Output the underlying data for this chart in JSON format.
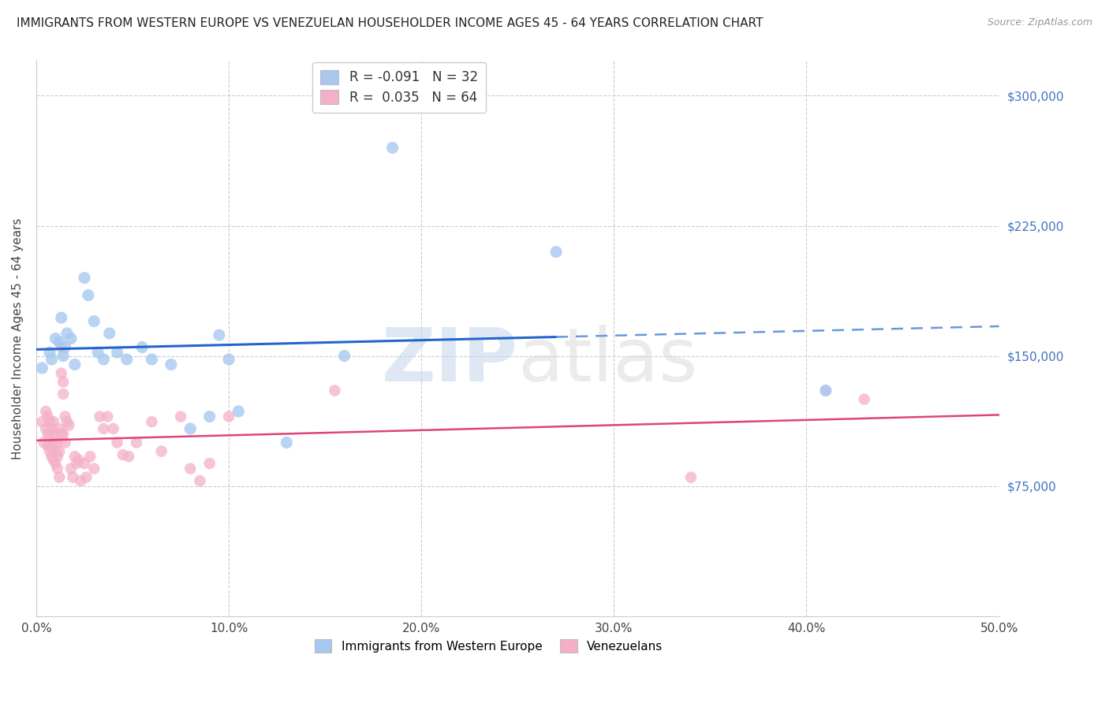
{
  "title": "IMMIGRANTS FROM WESTERN EUROPE VS VENEZUELAN HOUSEHOLDER INCOME AGES 45 - 64 YEARS CORRELATION CHART",
  "source": "Source: ZipAtlas.com",
  "ylabel_label": "Householder Income Ages 45 - 64 years",
  "ylabel_values": [
    75000,
    150000,
    225000,
    300000
  ],
  "xlim": [
    0.0,
    0.5
  ],
  "ylim": [
    0,
    320000
  ],
  "x_tick_vals": [
    0.0,
    0.1,
    0.2,
    0.3,
    0.4,
    0.5
  ],
  "xlabel_ticks": [
    "0.0%",
    "10.0%",
    "20.0%",
    "30.0%",
    "40.0%",
    "50.0%"
  ],
  "blue_color": "#a8c8f0",
  "pink_color": "#f4b0c8",
  "trend_blue_solid_color": "#2266cc",
  "trend_blue_dash_color": "#6699dd",
  "trend_pink_color": "#dd4477",
  "watermark_zip": "ZIP",
  "watermark_atlas": "atlas",
  "legend1_label_r": "-0.091",
  "legend1_label_n": "32",
  "legend2_label_r": "0.035",
  "legend2_label_n": "64",
  "blue_scatter": [
    [
      0.003,
      143000
    ],
    [
      0.007,
      152000
    ],
    [
      0.008,
      148000
    ],
    [
      0.01,
      160000
    ],
    [
      0.012,
      158000
    ],
    [
      0.013,
      172000
    ],
    [
      0.014,
      150000
    ],
    [
      0.015,
      155000
    ],
    [
      0.016,
      163000
    ],
    [
      0.018,
      160000
    ],
    [
      0.02,
      145000
    ],
    [
      0.025,
      195000
    ],
    [
      0.027,
      185000
    ],
    [
      0.03,
      170000
    ],
    [
      0.032,
      152000
    ],
    [
      0.035,
      148000
    ],
    [
      0.038,
      163000
    ],
    [
      0.042,
      152000
    ],
    [
      0.047,
      148000
    ],
    [
      0.055,
      155000
    ],
    [
      0.06,
      148000
    ],
    [
      0.07,
      145000
    ],
    [
      0.08,
      108000
    ],
    [
      0.09,
      115000
    ],
    [
      0.095,
      162000
    ],
    [
      0.1,
      148000
    ],
    [
      0.105,
      118000
    ],
    [
      0.13,
      100000
    ],
    [
      0.16,
      150000
    ],
    [
      0.185,
      270000
    ],
    [
      0.27,
      210000
    ],
    [
      0.41,
      130000
    ]
  ],
  "pink_scatter": [
    [
      0.003,
      112000
    ],
    [
      0.004,
      100000
    ],
    [
      0.005,
      118000
    ],
    [
      0.005,
      108000
    ],
    [
      0.006,
      105000
    ],
    [
      0.006,
      98000
    ],
    [
      0.006,
      115000
    ],
    [
      0.007,
      112000
    ],
    [
      0.007,
      105000
    ],
    [
      0.007,
      95000
    ],
    [
      0.008,
      108000
    ],
    [
      0.008,
      98000
    ],
    [
      0.008,
      92000
    ],
    [
      0.009,
      112000
    ],
    [
      0.009,
      100000
    ],
    [
      0.009,
      90000
    ],
    [
      0.01,
      105000
    ],
    [
      0.01,
      95000
    ],
    [
      0.01,
      88000
    ],
    [
      0.011,
      100000
    ],
    [
      0.011,
      92000
    ],
    [
      0.011,
      85000
    ],
    [
      0.012,
      108000
    ],
    [
      0.012,
      95000
    ],
    [
      0.012,
      80000
    ],
    [
      0.013,
      155000
    ],
    [
      0.013,
      140000
    ],
    [
      0.013,
      105000
    ],
    [
      0.014,
      135000
    ],
    [
      0.014,
      128000
    ],
    [
      0.014,
      105000
    ],
    [
      0.015,
      115000
    ],
    [
      0.015,
      100000
    ],
    [
      0.016,
      112000
    ],
    [
      0.017,
      110000
    ],
    [
      0.018,
      85000
    ],
    [
      0.019,
      80000
    ],
    [
      0.02,
      92000
    ],
    [
      0.021,
      88000
    ],
    [
      0.022,
      90000
    ],
    [
      0.023,
      78000
    ],
    [
      0.025,
      88000
    ],
    [
      0.026,
      80000
    ],
    [
      0.028,
      92000
    ],
    [
      0.03,
      85000
    ],
    [
      0.033,
      115000
    ],
    [
      0.035,
      108000
    ],
    [
      0.037,
      115000
    ],
    [
      0.04,
      108000
    ],
    [
      0.042,
      100000
    ],
    [
      0.045,
      93000
    ],
    [
      0.048,
      92000
    ],
    [
      0.052,
      100000
    ],
    [
      0.06,
      112000
    ],
    [
      0.065,
      95000
    ],
    [
      0.075,
      115000
    ],
    [
      0.08,
      85000
    ],
    [
      0.085,
      78000
    ],
    [
      0.09,
      88000
    ],
    [
      0.1,
      115000
    ],
    [
      0.155,
      130000
    ],
    [
      0.34,
      80000
    ],
    [
      0.41,
      130000
    ],
    [
      0.43,
      125000
    ]
  ]
}
